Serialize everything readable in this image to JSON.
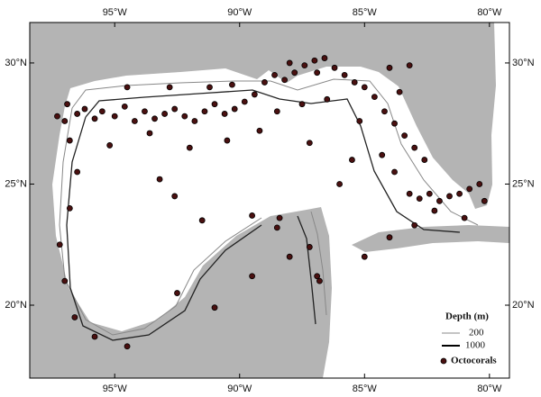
{
  "map": {
    "xlim": [
      -98.4,
      -79.2
    ],
    "ylim": [
      16.99,
      31.67
    ],
    "xticks": [
      {
        "value": -95,
        "label": "95°W"
      },
      {
        "value": -90,
        "label": "90°W"
      },
      {
        "value": -85,
        "label": "85°W"
      },
      {
        "value": -80,
        "label": "80°W"
      }
    ],
    "yticks": [
      {
        "value": 20,
        "label": "20°N"
      },
      {
        "value": 25,
        "label": "25°N"
      },
      {
        "value": 30,
        "label": "30°N"
      }
    ],
    "legend": {
      "title": "Depth (m)",
      "contours": [
        "200",
        "1000"
      ],
      "points": "Octocorals"
    },
    "points": {
      "lon": [
        -97.3,
        -97.0,
        -96.5,
        -96.2,
        -95.8,
        -95.5,
        -95.0,
        -94.6,
        -94.2,
        -93.8,
        -93.4,
        -93.0,
        -92.6,
        -92.2,
        -91.8,
        -91.4,
        -91.0,
        -90.6,
        -90.2,
        -89.8,
        -89.4,
        -89.0,
        -88.6,
        -88.2,
        -87.8,
        -87.4,
        -87.0,
        -86.6,
        -86.2,
        -85.8,
        -85.4,
        -85.0,
        -84.6,
        -84.2,
        -83.8,
        -83.4,
        -83.0,
        -82.6,
        -83.6,
        -84.0,
        -83.2,
        -86.5,
        -87.5,
        -88.5,
        -96.8,
        -95.2,
        -93.6,
        -92.0,
        -90.5,
        -89.2,
        -87.2,
        -85.2,
        -84.3,
        -83.8,
        -83.2,
        -82.8,
        -82.4,
        -82.0,
        -81.6,
        -81.2,
        -80.8,
        -80.4,
        -80.2,
        -82.2,
        -81.0,
        -83.0,
        -84.0,
        -85.0,
        -86.8,
        -86.9,
        -87.2,
        -88.0,
        -88.5,
        -89.5,
        -91.5,
        -93.2,
        -92.6,
        -96.5,
        -96.8,
        -97.2,
        -97.0,
        -96.6,
        -95.8,
        -94.5,
        -92.5,
        -91.0,
        -89.5,
        -88.4,
        -86.0,
        -85.5,
        -90.3,
        -91.2,
        -92.8,
        -94.5,
        -96.9,
        -88.0,
        -86.9
      ],
      "lat": [
        27.8,
        27.6,
        27.9,
        28.1,
        27.7,
        28.0,
        27.8,
        28.2,
        27.6,
        28.0,
        27.7,
        27.9,
        28.1,
        27.8,
        27.6,
        28.0,
        28.3,
        27.9,
        28.1,
        28.4,
        28.7,
        29.2,
        29.5,
        29.3,
        29.6,
        29.9,
        30.1,
        30.2,
        29.8,
        29.5,
        29.2,
        29.0,
        28.6,
        28.0,
        27.5,
        27.0,
        26.5,
        26.0,
        28.8,
        29.8,
        29.9,
        28.5,
        28.3,
        28.0,
        26.8,
        26.6,
        27.1,
        26.5,
        26.8,
        27.2,
        26.7,
        27.6,
        26.2,
        25.5,
        24.6,
        24.4,
        24.6,
        24.3,
        24.5,
        24.6,
        24.8,
        25.0,
        24.3,
        23.9,
        23.6,
        23.3,
        22.8,
        22.0,
        21.0,
        21.2,
        22.4,
        22.0,
        23.2,
        23.7,
        23.5,
        25.2,
        24.5,
        25.5,
        24.0,
        22.5,
        21.0,
        19.5,
        18.7,
        18.3,
        20.5,
        19.9,
        21.2,
        23.6,
        25.0,
        26.0,
        29.1,
        29.0,
        29.0,
        29.0,
        28.3,
        30.0,
        29.6
      ]
    }
  }
}
